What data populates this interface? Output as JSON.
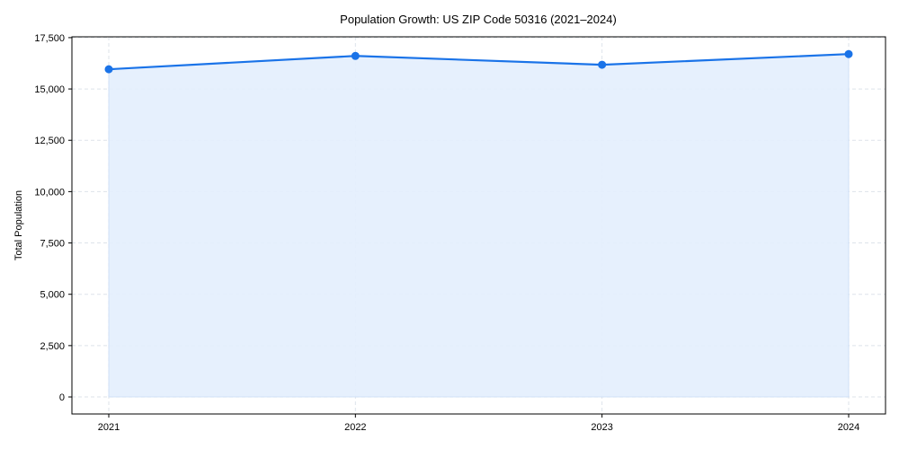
{
  "chart_data": {
    "type": "area",
    "title": "Population Growth: US ZIP Code 50316 (2021–2024)",
    "xlabel": "",
    "ylabel": "Total Population",
    "categories": [
      "2021",
      "2022",
      "2023",
      "2024"
    ],
    "series": [
      {
        "name": "Total Population",
        "values": [
          15960,
          16610,
          16180,
          16700
        ]
      }
    ],
    "ylim": [
      -830,
      17540
    ],
    "yticks": [
      0,
      2500,
      5000,
      7500,
      10000,
      12500,
      15000,
      17500
    ],
    "ytick_labels": [
      "0",
      "2,500",
      "5,000",
      "7,500",
      "10,000",
      "12,500",
      "15,000",
      "17,500"
    ],
    "grid": true,
    "legend": null,
    "colors": {
      "line": "#1a73e8",
      "fill": "#e3eefd",
      "grid": "#dde3ea",
      "axis": "#000000"
    }
  }
}
